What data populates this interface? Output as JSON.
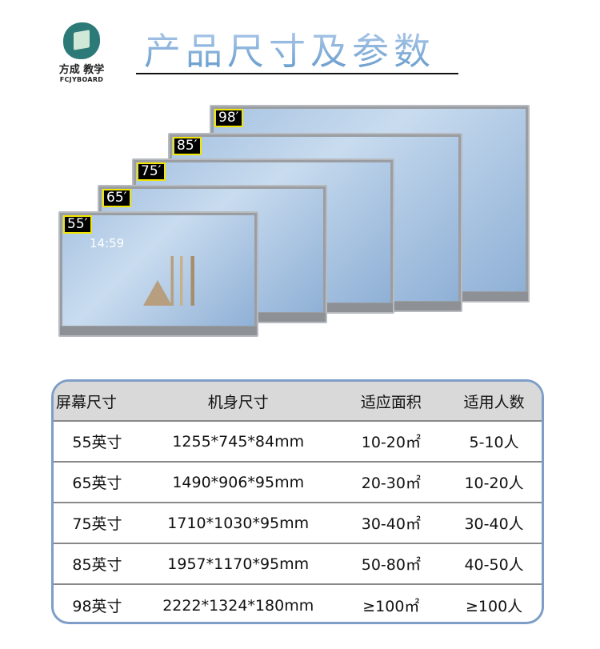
{
  "logo": {
    "cn": "方成 教学",
    "en": "FCJYBOARD"
  },
  "title": "产品尺寸及参数",
  "monitors": [
    {
      "label": "98′"
    },
    {
      "label": "85′"
    },
    {
      "label": "75′"
    },
    {
      "label": "65′"
    },
    {
      "label": "55′",
      "clock": "14:59"
    }
  ],
  "table": {
    "headers": [
      "屏幕尺寸",
      "机身尺寸",
      "适应面积",
      "适用人数"
    ],
    "rows": [
      [
        "55英寸",
        "1255*745*84mm",
        "10-20㎡",
        "5-10人"
      ],
      [
        "65英寸",
        "1490*906*95mm",
        "20-30㎡",
        "10-20人"
      ],
      [
        "75英寸",
        "1710*1030*95mm",
        "30-40㎡",
        "30-40人"
      ],
      [
        "85英寸",
        "1957*1170*95mm",
        "50-80㎡",
        "40-50人"
      ],
      [
        "98英寸",
        "2222*1324*180mm",
        "≥100㎡",
        "≥100人"
      ]
    ]
  }
}
